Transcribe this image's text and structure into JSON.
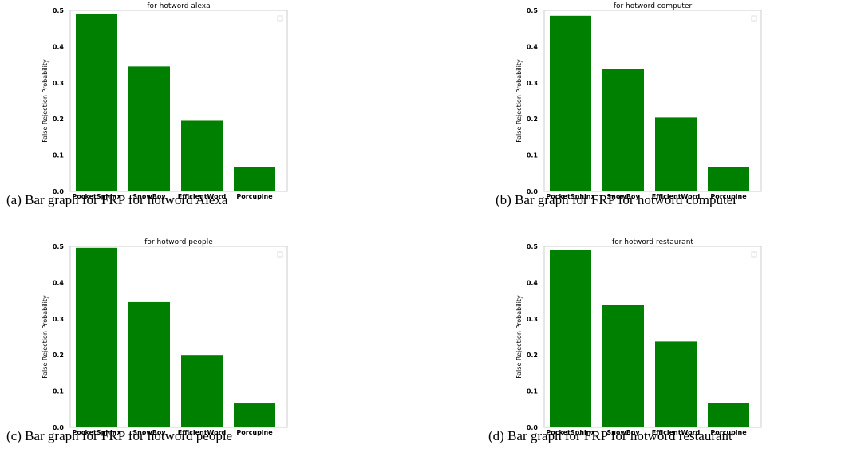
{
  "panels": [
    {
      "caption": "(a) Bar graph for FRP for hotword Alexa",
      "chart_data": {
        "type": "bar",
        "title": "for hotword alexa",
        "xlabel": "",
        "ylabel": "False Rejection Probability",
        "categories": [
          "PocketSphinx",
          "SnowBoy",
          "EfficientWord",
          "Porcupine"
        ],
        "values": [
          0.49,
          0.345,
          0.195,
          0.068
        ],
        "ylim": [
          0,
          0.5
        ],
        "yticks": [
          "0.0",
          "0.1",
          "0.2",
          "0.3",
          "0.4",
          "0.5"
        ],
        "bar_color": "#008000",
        "legend": "empty, top-right"
      }
    },
    {
      "caption": "(b) Bar graph for FRP for hotword computer",
      "chart_data": {
        "type": "bar",
        "title": "for hotword computer",
        "xlabel": "",
        "ylabel": "False Rejection Probability",
        "categories": [
          "PocketSphinx",
          "SnowBoy",
          "EfficientWord",
          "Porcupine"
        ],
        "values": [
          0.485,
          0.338,
          0.204,
          0.068
        ],
        "ylim": [
          0,
          0.5
        ],
        "yticks": [
          "0.0",
          "0.1",
          "0.2",
          "0.3",
          "0.4",
          "0.5"
        ],
        "bar_color": "#008000",
        "legend": "empty, top-right"
      }
    },
    {
      "caption": "(c) Bar graph for FRP for hotword people",
      "chart_data": {
        "type": "bar",
        "title": "for hotword people",
        "xlabel": "",
        "ylabel": "False Rejection Probability",
        "categories": [
          "PocketSphinx",
          "SnowBoy",
          "EfficientWord",
          "Porcupine"
        ],
        "values": [
          0.496,
          0.346,
          0.2,
          0.066
        ],
        "ylim": [
          0,
          0.5
        ],
        "yticks": [
          "0.0",
          "0.1",
          "0.2",
          "0.3",
          "0.4",
          "0.5"
        ],
        "bar_color": "#008000",
        "legend": "empty, top-right"
      }
    },
    {
      "caption": "(d) Bar graph for FRP for hotword restaurant",
      "chart_data": {
        "type": "bar",
        "title": "for hotword restaurant",
        "xlabel": "",
        "ylabel": "False Rejection Probability",
        "categories": [
          "PocketSphinx",
          "SnowBoy",
          "EfficientWord",
          "Porcupine"
        ],
        "values": [
          0.49,
          0.338,
          0.237,
          0.068
        ],
        "ylim": [
          0,
          0.5
        ],
        "yticks": [
          "0.0",
          "0.1",
          "0.2",
          "0.3",
          "0.4",
          "0.5"
        ],
        "bar_color": "#008000",
        "legend": "empty, top-right"
      }
    }
  ]
}
